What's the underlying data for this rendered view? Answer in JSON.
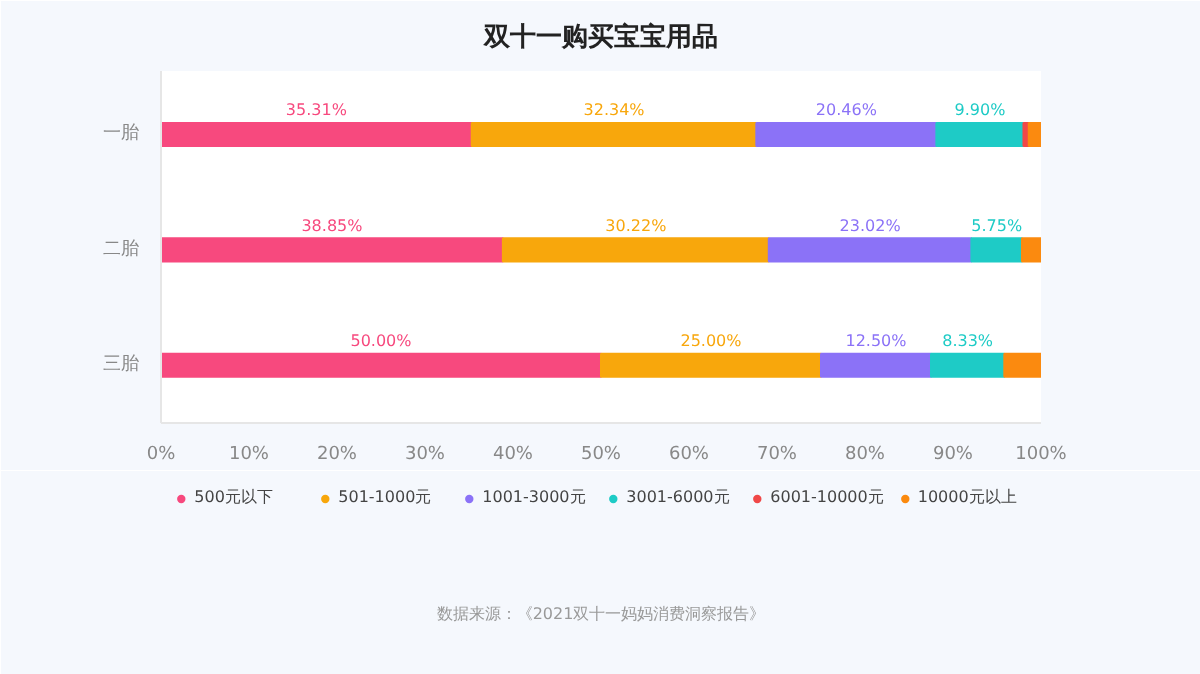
{
  "chart_data": {
    "type": "bar",
    "orientation": "horizontal",
    "stacked": true,
    "title": "双十一购买宝宝用品",
    "categories": [
      "一胎",
      "二胎",
      "三胎"
    ],
    "series": [
      {
        "name": "500元以下",
        "color": "#f7497e",
        "values": [
          35.31,
          38.85,
          50.0
        ],
        "value_labels": [
          "35.31%",
          "38.85%",
          "50.00%"
        ]
      },
      {
        "name": "501-1000元",
        "color": "#f8a70c",
        "values": [
          32.34,
          30.22,
          25.0
        ],
        "value_labels": [
          "32.34%",
          "30.22%",
          "25.00%"
        ]
      },
      {
        "name": "1001-3000元",
        "color": "#8b72f7",
        "values": [
          20.46,
          23.02,
          12.5
        ],
        "value_labels": [
          "20.46%",
          "23.02%",
          "12.50%"
        ]
      },
      {
        "name": "3001-6000元",
        "color": "#1ecbc6",
        "values": [
          9.9,
          5.75,
          8.33
        ],
        "value_labels": [
          "9.90%",
          "5.75%",
          "8.33%"
        ]
      },
      {
        "name": "6001-10000元",
        "color": "#f04848",
        "values": [
          0.6,
          null,
          null
        ]
      },
      {
        "name": "10000元以上",
        "color": "#fb8a0f",
        "values": [
          1.39,
          2.16,
          4.17
        ]
      }
    ],
    "xlim": [
      0,
      100
    ],
    "xticks": [
      {
        "value": 0,
        "label": "0%"
      },
      {
        "value": 10,
        "label": "10%"
      },
      {
        "value": 20,
        "label": "20%"
      },
      {
        "value": 30,
        "label": "30%"
      },
      {
        "value": 40,
        "label": "40%"
      },
      {
        "value": 50,
        "label": "50%"
      },
      {
        "value": 60,
        "label": "60%"
      },
      {
        "value": 70,
        "label": "70%"
      },
      {
        "value": 80,
        "label": "80%"
      },
      {
        "value": 90,
        "label": "90%"
      },
      {
        "value": 100,
        "label": "100%"
      }
    ],
    "legend": "bottom",
    "annotations": [
      "数据来源：《2021双十一妈妈消费洞察报告》"
    ]
  }
}
